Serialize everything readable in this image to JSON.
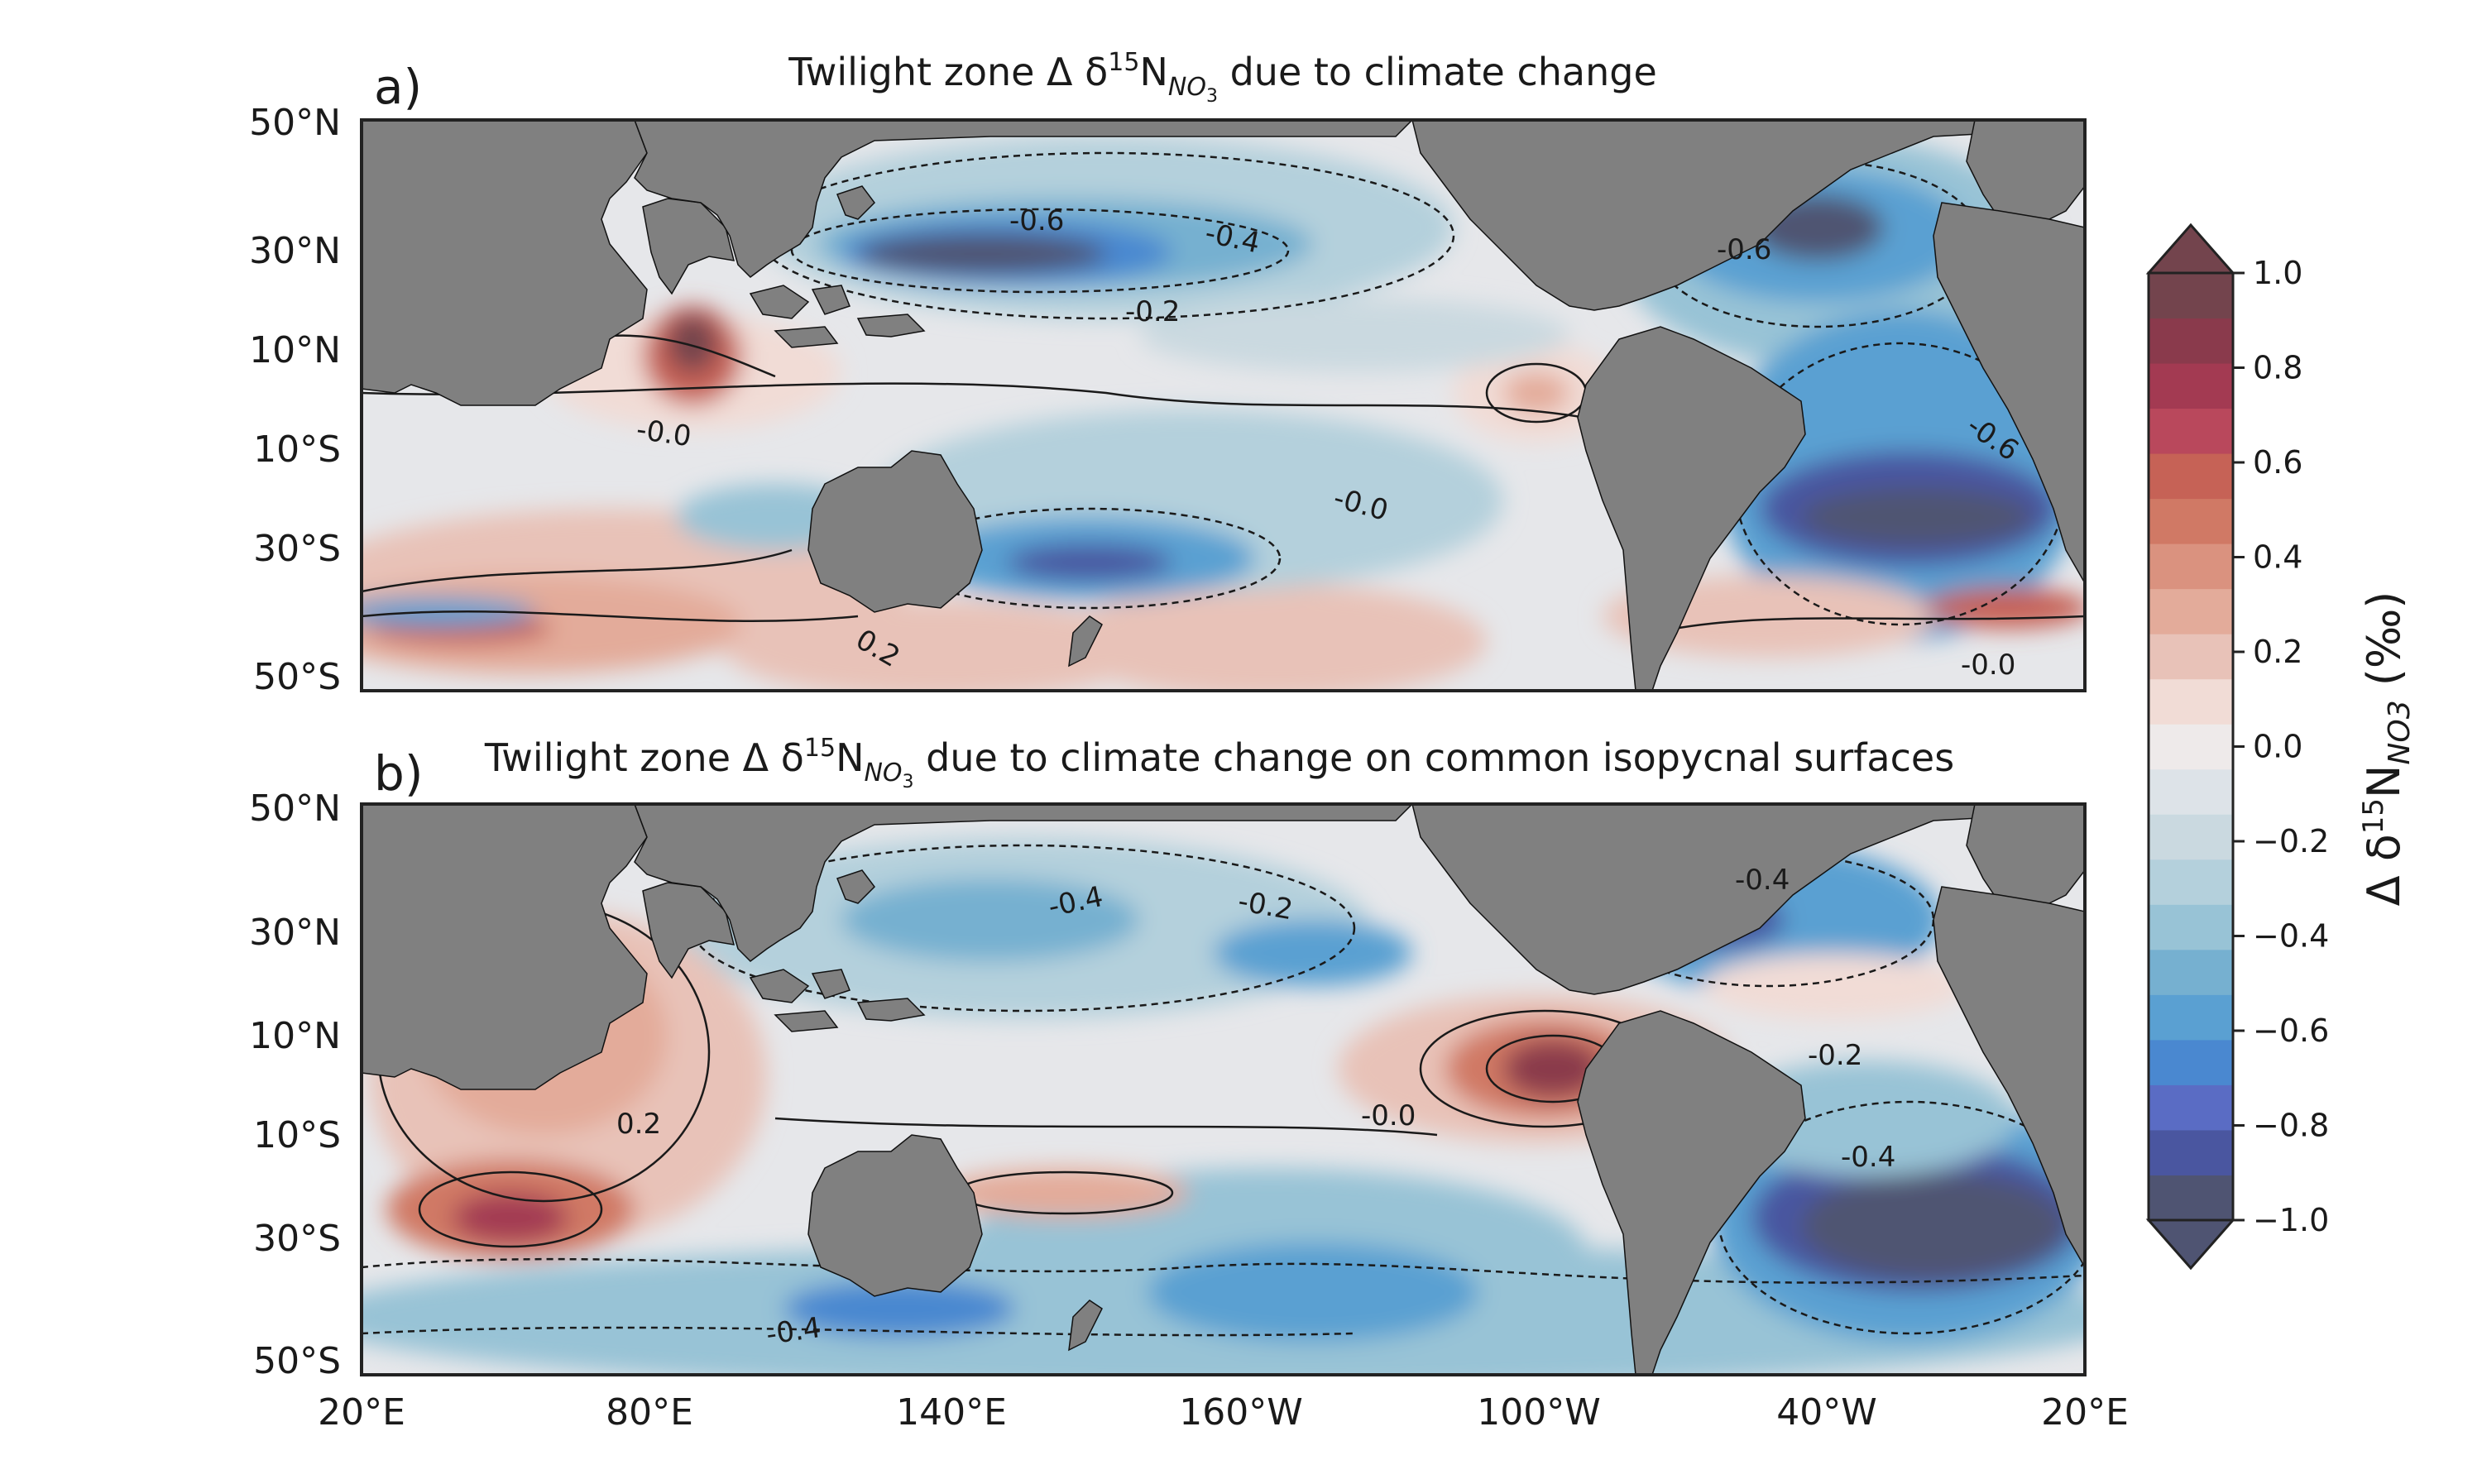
{
  "panels": [
    {
      "letter": "a)",
      "title_prefix": "Twilight zone Δ δ",
      "title_sup": "15",
      "title_n": "N",
      "title_sub": "NO",
      "title_sub2": "3",
      "title_suffix": " due to climate change",
      "lat_ticks": [
        "50°N",
        "30°N",
        "10°N",
        "10°S",
        "30°S",
        "50°S"
      ],
      "lon_ticks": [],
      "contour_labels": [
        "-0.6",
        "-0.4",
        "-0.2",
        "-0.6",
        "-0.6",
        "-0.0",
        "-0.0",
        "0.2",
        "-0.0"
      ]
    },
    {
      "letter": "b)",
      "title_prefix": "Twilight zone Δ δ",
      "title_sup": "15",
      "title_n": "N",
      "title_sub": "NO",
      "title_sub2": "3",
      "title_suffix": " due to climate change on common isopycnal surfaces",
      "lat_ticks": [
        "50°N",
        "30°N",
        "10°N",
        "10°S",
        "30°S",
        "50°S"
      ],
      "lon_ticks": [
        "20°E",
        "80°E",
        "140°E",
        "160°W",
        "100°W",
        "40°W",
        "20°E"
      ],
      "contour_labels": [
        "-0.4",
        "-0.2",
        "-0.4",
        "-0.2",
        "0.2",
        "-0.0",
        "-0.4",
        "-0.4"
      ]
    }
  ],
  "colorbar": {
    "label_prefix": "Δ δ",
    "label_sup": "15",
    "label_n": "N",
    "label_sub": "NO3",
    "label_suffix": " (‰)",
    "ticks": [
      "1.0",
      "0.8",
      "0.6",
      "0.4",
      "0.2",
      "0.0",
      "−0.2",
      "−0.4",
      "−0.6",
      "−0.8",
      "−1.0"
    ],
    "min": -1.0,
    "max": 1.0,
    "colors": [
      "#4f5472",
      "#4a56a0",
      "#5a6cc4",
      "#4a88d0",
      "#5aa0d2",
      "#76b0d0",
      "#98c3d6",
      "#b4d0dc",
      "#cad9e0",
      "#dde3e8",
      "#eeeaea",
      "#f1dcd6",
      "#e8c2b8",
      "#e3ab9a",
      "#da927f",
      "#d07965",
      "#c66256",
      "#b9485c",
      "#a33a52",
      "#8a3a4c",
      "#73444d"
    ]
  },
  "colors": {
    "land": "#808080",
    "ocean_base": "#e6e7ea",
    "frame": "#222222"
  }
}
